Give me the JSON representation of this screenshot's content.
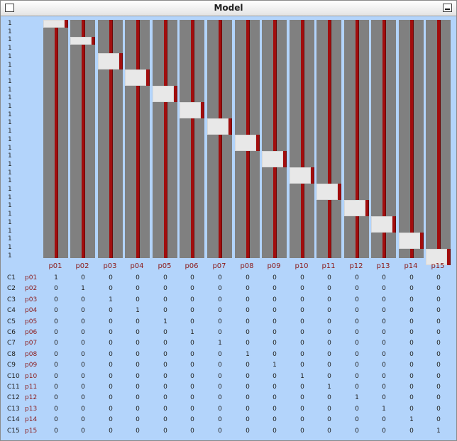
{
  "window": {
    "title": "Model"
  },
  "top_row_labels": [
    "1",
    "1",
    "1",
    "1",
    "1",
    "1",
    "1",
    "1",
    "1",
    "1",
    "1",
    "1",
    "1",
    "1",
    "1",
    "1",
    "1",
    "1",
    "1",
    "1",
    "1",
    "1",
    "1",
    "1",
    "1",
    "1",
    "1",
    "1",
    "1"
  ],
  "columns": [
    "p01",
    "p02",
    "p03",
    "p04",
    "p05",
    "p06",
    "p07",
    "p08",
    "p09",
    "p10",
    "p11",
    "p12",
    "p13",
    "p14",
    "p15"
  ],
  "rows": [
    {
      "id": "C1",
      "name": "p01",
      "values": [
        "1",
        "0",
        "0",
        "0",
        "0",
        "0",
        "0",
        "0",
        "0",
        "0",
        "0",
        "0",
        "0",
        "0",
        "0"
      ]
    },
    {
      "id": "C2",
      "name": "p02",
      "values": [
        "0",
        "1",
        "0",
        "0",
        "0",
        "0",
        "0",
        "0",
        "0",
        "0",
        "0",
        "0",
        "0",
        "0",
        "0"
      ]
    },
    {
      "id": "C3",
      "name": "p03",
      "values": [
        "0",
        "0",
        "1",
        "0",
        "0",
        "0",
        "0",
        "0",
        "0",
        "0",
        "0",
        "0",
        "0",
        "0",
        "0"
      ]
    },
    {
      "id": "C4",
      "name": "p04",
      "values": [
        "0",
        "0",
        "0",
        "1",
        "0",
        "0",
        "0",
        "0",
        "0",
        "0",
        "0",
        "0",
        "0",
        "0",
        "0"
      ]
    },
    {
      "id": "C5",
      "name": "p05",
      "values": [
        "0",
        "0",
        "0",
        "0",
        "1",
        "0",
        "0",
        "0",
        "0",
        "0",
        "0",
        "0",
        "0",
        "0",
        "0"
      ]
    },
    {
      "id": "C6",
      "name": "p06",
      "values": [
        "0",
        "0",
        "0",
        "0",
        "0",
        "1",
        "0",
        "0",
        "0",
        "0",
        "0",
        "0",
        "0",
        "0",
        "0"
      ]
    },
    {
      "id": "C7",
      "name": "p07",
      "values": [
        "0",
        "0",
        "0",
        "0",
        "0",
        "0",
        "1",
        "0",
        "0",
        "0",
        "0",
        "0",
        "0",
        "0",
        "0"
      ]
    },
    {
      "id": "C8",
      "name": "p08",
      "values": [
        "0",
        "0",
        "0",
        "0",
        "0",
        "0",
        "0",
        "1",
        "0",
        "0",
        "0",
        "0",
        "0",
        "0",
        "0"
      ]
    },
    {
      "id": "C9",
      "name": "p09",
      "values": [
        "0",
        "0",
        "0",
        "0",
        "0",
        "0",
        "0",
        "0",
        "1",
        "0",
        "0",
        "0",
        "0",
        "0",
        "0"
      ]
    },
    {
      "id": "C10",
      "name": "p10",
      "values": [
        "0",
        "0",
        "0",
        "0",
        "0",
        "0",
        "0",
        "0",
        "0",
        "1",
        "0",
        "0",
        "0",
        "0",
        "0"
      ]
    },
    {
      "id": "C11",
      "name": "p11",
      "values": [
        "0",
        "0",
        "0",
        "0",
        "0",
        "0",
        "0",
        "0",
        "0",
        "0",
        "1",
        "0",
        "0",
        "0",
        "0"
      ]
    },
    {
      "id": "C12",
      "name": "p12",
      "values": [
        "0",
        "0",
        "0",
        "0",
        "0",
        "0",
        "0",
        "0",
        "0",
        "0",
        "0",
        "1",
        "0",
        "0",
        "0"
      ]
    },
    {
      "id": "C13",
      "name": "p13",
      "values": [
        "0",
        "0",
        "0",
        "0",
        "0",
        "0",
        "0",
        "0",
        "0",
        "0",
        "0",
        "0",
        "1",
        "0",
        "0"
      ]
    },
    {
      "id": "C14",
      "name": "p14",
      "values": [
        "0",
        "0",
        "0",
        "0",
        "0",
        "0",
        "0",
        "0",
        "0",
        "0",
        "0",
        "0",
        "0",
        "1",
        "0"
      ]
    },
    {
      "id": "C15",
      "name": "p15",
      "values": [
        "0",
        "0",
        "0",
        "0",
        "0",
        "0",
        "0",
        "0",
        "0",
        "0",
        "0",
        "0",
        "0",
        "0",
        "1"
      ]
    }
  ],
  "colors": {
    "background": "#b3d4fb",
    "bar": "#808080",
    "red_line": "#a10d0d",
    "label_red": "#8b1a1a"
  }
}
